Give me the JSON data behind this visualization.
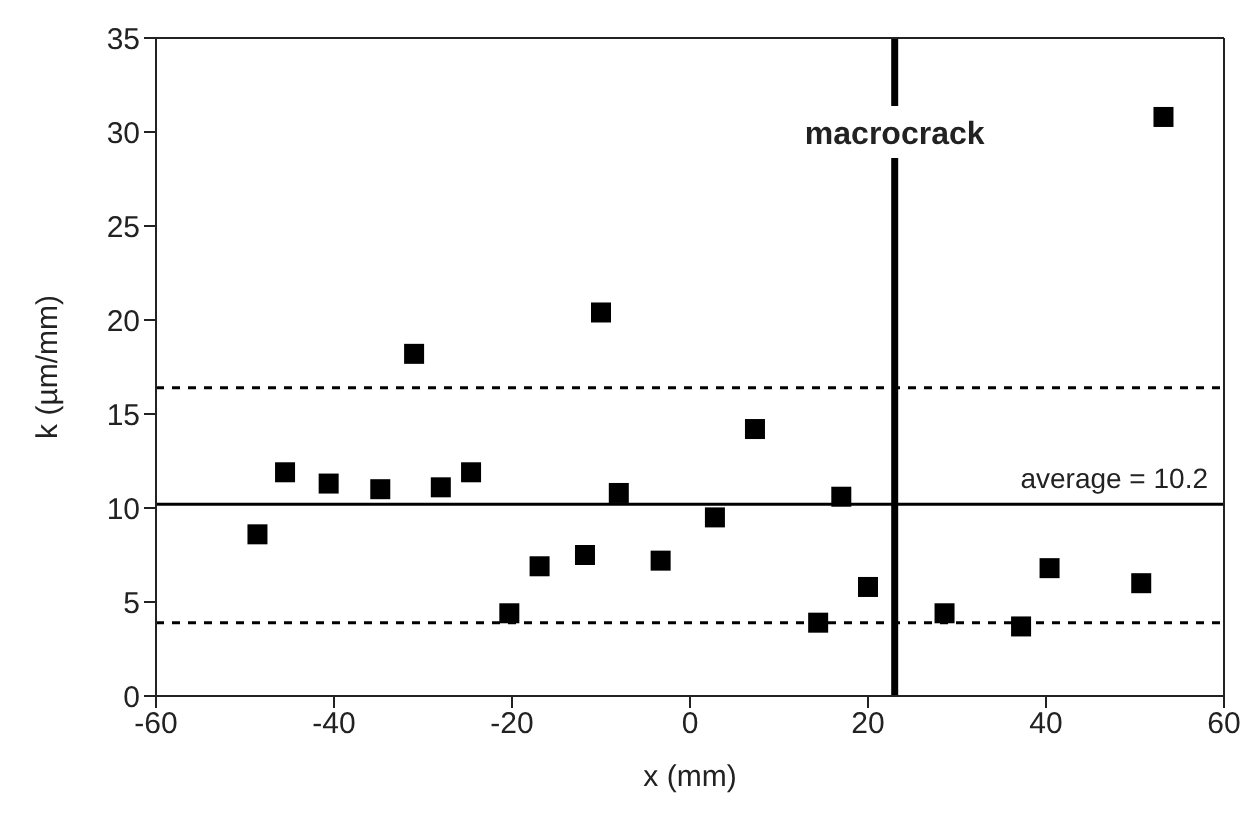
{
  "chart_data": {
    "type": "scatter",
    "xlabel": "x (mm)",
    "ylabel": "k  (µm/mm)",
    "marker": "square",
    "xlim": [
      -60,
      60
    ],
    "xticks": [
      -60,
      -40,
      -20,
      0,
      20,
      40,
      60
    ],
    "ylim": [
      0,
      35
    ],
    "yticks": [
      0,
      5,
      10,
      15,
      20,
      25,
      30,
      35
    ],
    "x": [
      -48.6,
      -45.5,
      -40.6,
      -34.8,
      -31.0,
      -28.0,
      -24.6,
      -20.3,
      -16.9,
      -11.8,
      -10.0,
      -8.0,
      -3.3,
      2.8,
      7.3,
      14.4,
      17.0,
      20.0,
      28.6,
      37.2,
      40.4,
      50.7,
      53.2
    ],
    "series": [
      {
        "color": "#000000",
        "values": [
          8.6,
          11.9,
          11.3,
          11.0,
          18.2,
          11.1,
          11.9,
          4.4,
          6.9,
          7.5,
          20.4,
          10.8,
          7.2,
          9.5,
          14.2,
          3.9,
          10.6,
          5.8,
          4.4,
          3.7,
          6.8,
          6.0,
          30.8
        ]
      }
    ],
    "ref_lines": [
      {
        "axis": "y",
        "value": 10.2,
        "label": "average = 10.2",
        "line_style": "solid",
        "color": "#000000"
      },
      {
        "axis": "y",
        "value": 16.4,
        "line_style": "dashed",
        "color": "#000000"
      },
      {
        "axis": "y",
        "value": 3.9,
        "line_style": "dashed",
        "color": "#000000"
      },
      {
        "axis": "x",
        "value": 23,
        "label": "macrocrack",
        "line_style": "solid",
        "color": "#000000"
      }
    ]
  }
}
